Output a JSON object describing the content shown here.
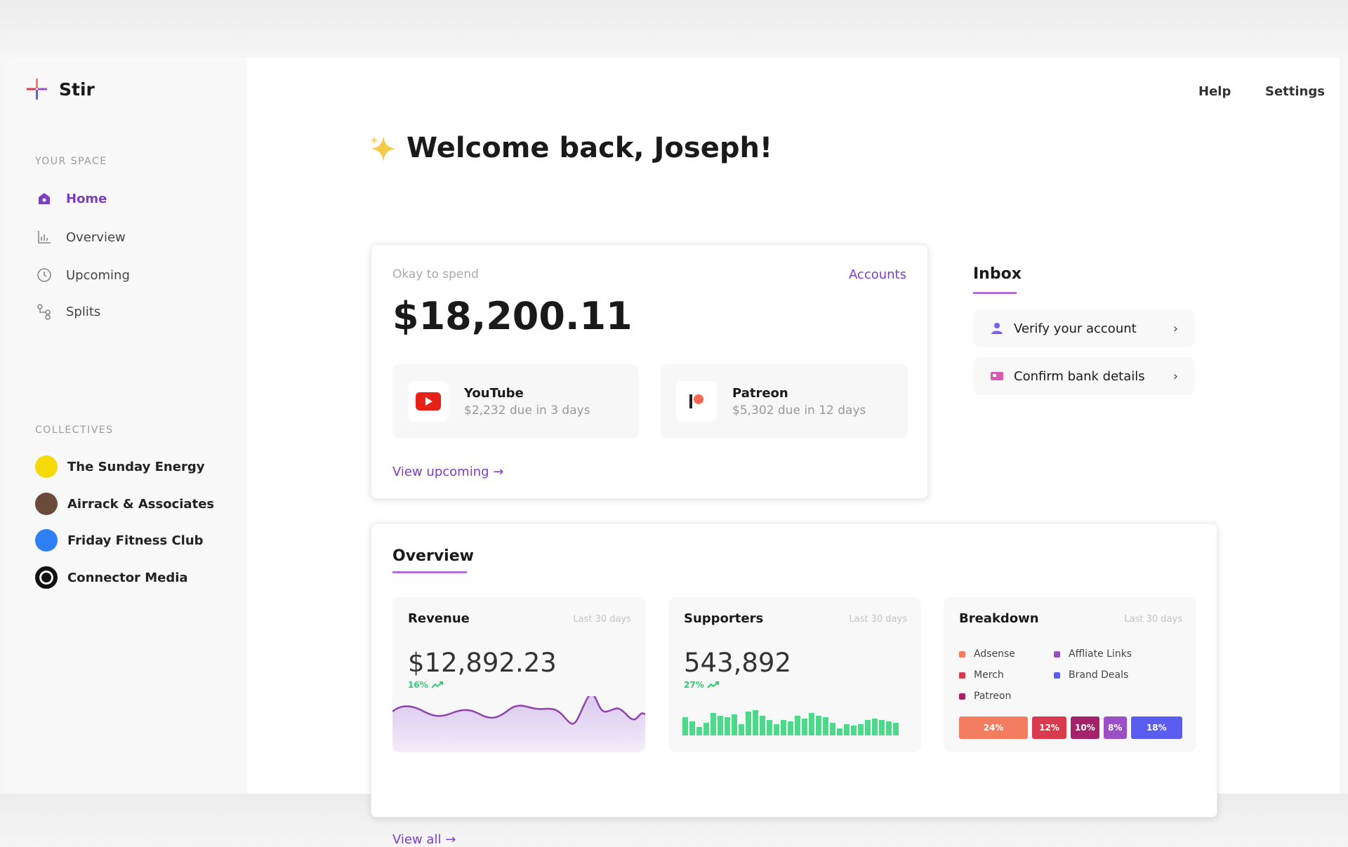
{
  "app": {
    "name": "Stir"
  },
  "topnav": [
    "Help",
    "Settings"
  ],
  "sidebar": {
    "sections": [
      {
        "title": "YOUR SPACE",
        "items": [
          "Home",
          "Overview",
          "Upcoming",
          "Splits"
        ]
      },
      {
        "title": "COLLECTIVES",
        "items": [
          "The Sunday Energy",
          "Airrack & Associates",
          "Friday Fitness Club",
          "Connector Media"
        ]
      }
    ]
  },
  "header": {
    "title": "Welcome back, Joseph!"
  },
  "balance": {
    "label": "Okay to spend",
    "link": "Accounts",
    "amount": "$18,200.11",
    "payouts": [
      {
        "name": "YouTube",
        "detail": "$2,232 due in 3 days"
      },
      {
        "name": "Patreon",
        "detail": "$5,302 due in 12 days"
      }
    ],
    "action": "View upcoming →"
  },
  "inbox": {
    "title": "Inbox",
    "items": [
      "Verify your account",
      "Confirm bank details"
    ]
  },
  "overview": {
    "title": "Overview",
    "action": "View all →",
    "revenue": {
      "title": "Revenue",
      "period": "Last 30 days",
      "value": "$12,892.23",
      "change": "16%"
    },
    "supporters": {
      "title": "Supporters",
      "period": "Last 30 days",
      "value": "543,892",
      "change": "27%"
    },
    "breakdown": {
      "title": "Breakdown",
      "period": "Last 30 days",
      "legend": [
        {
          "name": "Adsense",
          "color": "#f47c5f"
        },
        {
          "name": "Merch",
          "color": "#d93a4e"
        },
        {
          "name": "Patreon",
          "color": "#a3226a"
        },
        {
          "name": "Affliate Links",
          "color": "#9c4fc4"
        },
        {
          "name": "Brand Deals",
          "color": "#5b5cf0"
        }
      ],
      "values": [
        24,
        12,
        10,
        8,
        18
      ],
      "value_labels": [
        "24%",
        "12%",
        "10%",
        "8%",
        "18%"
      ]
    }
  }
}
